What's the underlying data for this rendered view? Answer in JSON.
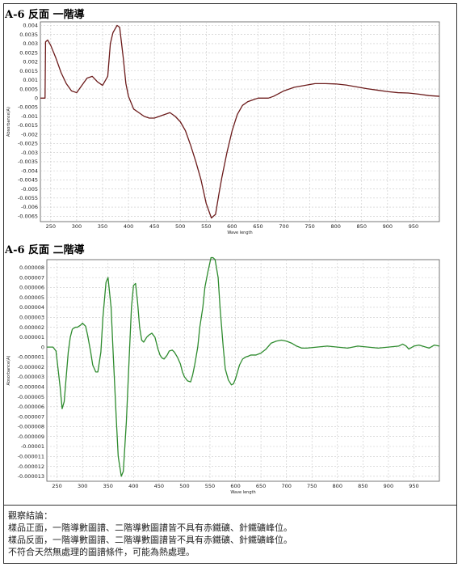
{
  "chart_data": [
    {
      "type": "line",
      "title": "A-6 反面 一階導",
      "xlabel": "Wave length",
      "ylabel": "Absorbance(A)",
      "xlim": [
        230,
        1000
      ],
      "ylim": [
        -0.0068,
        0.0042
      ],
      "grid": true,
      "x_ticks": [
        250,
        300,
        350,
        400,
        450,
        500,
        550,
        600,
        650,
        700,
        750,
        800,
        850,
        900,
        950
      ],
      "y_ticks": [
        "0.004",
        "0.0035",
        "0.003",
        "0.0025",
        "0.002",
        "0.0015",
        "0.001",
        "0.0005",
        "0",
        "-0.0005",
        "-0.001",
        "-0.0015",
        "-0.002",
        "-0.0025",
        "-0.003",
        "-0.0035",
        "-0.004",
        "-0.0045",
        "-0.005",
        "-0.0055",
        "-0.006",
        "-0.0065"
      ],
      "series": [
        {
          "color": "#6b1a1a",
          "x": [
            230,
            239,
            240,
            244,
            250,
            260,
            270,
            280,
            290,
            300,
            310,
            320,
            330,
            340,
            350,
            360,
            365,
            370,
            378,
            383,
            390,
            395,
            400,
            410,
            420,
            430,
            440,
            450,
            460,
            470,
            480,
            490,
            500,
            510,
            520,
            530,
            540,
            550,
            560,
            568,
            575,
            580,
            590,
            600,
            610,
            620,
            630,
            640,
            650,
            660,
            670,
            680,
            700,
            720,
            740,
            760,
            780,
            800,
            820,
            840,
            860,
            880,
            900,
            920,
            940,
            960,
            980,
            1000
          ],
          "y": [
            0,
            0,
            0.0031,
            0.0032,
            0.0029,
            0.0022,
            0.0014,
            0.0008,
            0.0004,
            0.0003,
            0.0007,
            0.0011,
            0.0012,
            0.0009,
            0.0007,
            0.0012,
            0.003,
            0.0036,
            0.004,
            0.0039,
            0.0022,
            0.0008,
            0.0001,
            -0.0006,
            -0.0008,
            -0.001,
            -0.0011,
            -0.0011,
            -0.001,
            -0.0009,
            -0.0008,
            -0.001,
            -0.0013,
            -0.0018,
            -0.0026,
            -0.0035,
            -0.0045,
            -0.0058,
            -0.0066,
            -0.0064,
            -0.0052,
            -0.0044,
            -0.003,
            -0.0018,
            -0.0009,
            -0.0004,
            -0.0002,
            -0.0001,
            0,
            0,
            0,
            0.0001,
            0.0004,
            0.0006,
            0.0007,
            0.0008,
            0.0008,
            0.00078,
            0.00072,
            0.00062,
            0.00052,
            0.00044,
            0.00036,
            0.0003,
            0.00028,
            0.00022,
            0.00014,
            0.0001
          ]
        }
      ]
    },
    {
      "type": "line",
      "title": "A-6 反面 二階導",
      "xlabel": "Wave length",
      "ylabel": "Absorbance(A)",
      "xlim": [
        230,
        1000
      ],
      "ylim": [
        -1.35e-05,
        8.8e-06
      ],
      "grid": true,
      "x_ticks": [
        250,
        300,
        350,
        400,
        450,
        500,
        550,
        600,
        650,
        700,
        750,
        800,
        850,
        900,
        950
      ],
      "y_ticks": [
        "0.000008",
        "0.000007",
        "0.000006",
        "0.000005",
        "0.000004",
        "0.000003",
        "0.000002",
        "0.000001",
        "0",
        "-0.000001",
        "-0.000002",
        "-0.000003",
        "-0.000004",
        "-0.000005",
        "-0.000006",
        "-0.000007",
        "-0.000008",
        "-0.000009",
        "-0.00001",
        "-0.000011",
        "-0.000012",
        "-0.000013"
      ],
      "series": [
        {
          "color": "#2e8b2e",
          "x": [
            230,
            242,
            248,
            256,
            260,
            264,
            268,
            272,
            276,
            280,
            286,
            290,
            296,
            300,
            306,
            310,
            316,
            320,
            326,
            330,
            336,
            340,
            346,
            350,
            356,
            360,
            366,
            370,
            376,
            380,
            386,
            392,
            396,
            400,
            404,
            408,
            412,
            416,
            420,
            426,
            430,
            436,
            442,
            448,
            452,
            456,
            460,
            466,
            470,
            476,
            480,
            486,
            492,
            496,
            500,
            506,
            512,
            516,
            520,
            526,
            530,
            536,
            540,
            546,
            552,
            556,
            560,
            566,
            570,
            576,
            580,
            586,
            592,
            596,
            600,
            604,
            608,
            614,
            620,
            626,
            630,
            640,
            650,
            660,
            670,
            680,
            690,
            700,
            710,
            720,
            730,
            740,
            760,
            780,
            800,
            820,
            840,
            860,
            880,
            900,
            920,
            928,
            935,
            940,
            950,
            960,
            980,
            990,
            1000
          ],
          "y": [
            0,
            0,
            -4e-07,
            -4e-06,
            -6.2e-06,
            -5.5e-06,
            -3e-06,
            -5e-07,
            1e-06,
            1.8e-06,
            2e-06,
            2e-06,
            2.2e-06,
            2.4e-06,
            2.1e-06,
            1.2e-06,
            -5e-07,
            -1.8e-06,
            -2.5e-06,
            -2.5e-06,
            -5e-07,
            3e-06,
            6.5e-06,
            7e-06,
            4e-06,
            -5e-07,
            -7e-06,
            -1.1e-05,
            -1.3e-05,
            -1.25e-05,
            -7.5e-06,
            -5e-07,
            4e-06,
            6.2e-06,
            6.4e-06,
            4.5e-06,
            2e-06,
            7e-07,
            5e-07,
            1e-06,
            1.2e-06,
            1.4e-06,
            1e-06,
            -2e-07,
            -8e-07,
            -1.1e-06,
            -1.2e-06,
            -8e-07,
            -4e-07,
            -3e-07,
            -5e-07,
            -1e-06,
            -1.7e-06,
            -2.5e-06,
            -3e-06,
            -3.4e-06,
            -3.5e-06,
            -2.8e-06,
            -1.8e-06,
            0,
            2e-06,
            4e-06,
            6e-06,
            7.6e-06,
            9e-06,
            9e-06,
            8.8e-06,
            7e-06,
            3.8e-06,
            0,
            -2.2e-06,
            -3.3e-06,
            -3.8e-06,
            -3.7e-06,
            -3.2e-06,
            -2.5e-06,
            -1.8e-06,
            -1.2e-06,
            -1e-06,
            -9e-07,
            -8e-07,
            -8e-07,
            -6e-07,
            -2e-07,
            4e-07,
            6e-07,
            7e-07,
            6e-07,
            4e-07,
            1e-07,
            -1e-07,
            -1e-07,
            0,
            1e-07,
            0,
            -1e-07,
            1e-07,
            0,
            -1e-07,
            0,
            1e-07,
            3e-07,
            1e-07,
            -2e-07,
            1e-07,
            2e-07,
            -1e-07,
            2e-07,
            1e-07
          ]
        }
      ]
    }
  ],
  "notes": [
    "觀察結論：",
    "樣品正面，一階導數圖譜、二階導數圖譜皆不具有赤鐵礦、針鐵礦峰位。",
    "樣品反面，一階導數圖譜、二階導數圖譜皆不具有赤鐵礦、針鐵礦峰位。",
    "不符合天然無處理的圖譜條件，可能為熱處理。"
  ]
}
